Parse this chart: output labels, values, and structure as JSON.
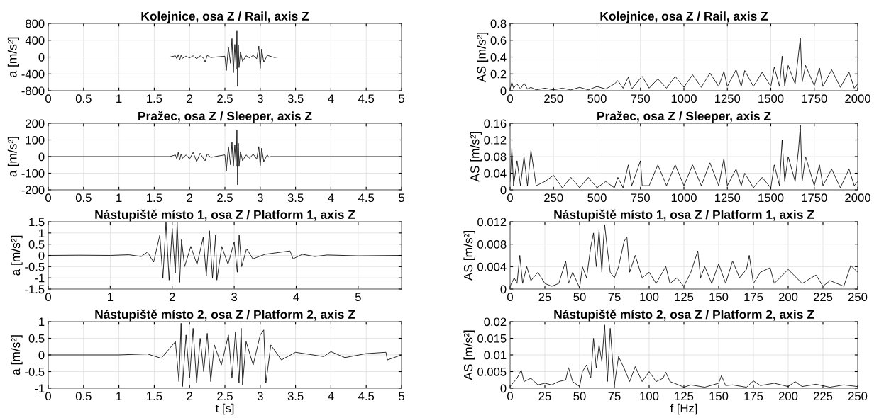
{
  "chart_data": [
    {
      "type": "line",
      "title": "Kolejnice, osa Z / Rail, axis Z",
      "ylabel": "a [m/s²]",
      "color": "#000000",
      "grid": true,
      "xlim": [
        0,
        5
      ],
      "xticks": [
        0,
        0.5,
        1,
        1.5,
        2,
        2.5,
        3,
        3.5,
        4,
        4.5,
        5
      ],
      "ylim": [
        -800,
        800
      ],
      "yticks": [
        -800,
        -400,
        0,
        400,
        800
      ],
      "x": [
        0,
        1.72,
        1.8,
        1.82,
        1.84,
        1.86,
        1.88,
        1.9,
        1.95,
        2.0,
        2.05,
        2.1,
        2.15,
        2.2,
        2.22,
        2.25,
        2.3,
        2.4,
        2.5,
        2.52,
        2.55,
        2.58,
        2.6,
        2.62,
        2.64,
        2.66,
        2.67,
        2.68,
        2.69,
        2.7,
        2.72,
        2.75,
        2.8,
        2.85,
        2.9,
        2.95,
        2.98,
        3.0,
        3.02,
        3.05,
        3.1,
        3.2,
        3.25,
        5
      ],
      "values": [
        0,
        0,
        30,
        -40,
        60,
        -70,
        40,
        -30,
        20,
        -20,
        30,
        -40,
        30,
        -30,
        -120,
        40,
        -10,
        5,
        20,
        -320,
        230,
        -150,
        440,
        -370,
        300,
        -280,
        620,
        -700,
        280,
        -250,
        120,
        -100,
        30,
        -20,
        40,
        -40,
        260,
        -270,
        190,
        -120,
        40,
        -10,
        0,
        0
      ]
    },
    {
      "type": "line",
      "title": "Pražec, osa Z / Sleeper, axis Z",
      "ylabel": "a [m/s²]",
      "color": "#000000",
      "grid": true,
      "xlim": [
        0,
        5
      ],
      "xticks": [
        0,
        0.5,
        1,
        1.5,
        2,
        2.5,
        3,
        3.5,
        4,
        4.5,
        5
      ],
      "ylim": [
        -200,
        200
      ],
      "yticks": [
        -200,
        -100,
        0,
        100,
        200
      ],
      "x": [
        0,
        1.72,
        1.8,
        1.82,
        1.84,
        1.86,
        1.88,
        1.9,
        1.95,
        2.0,
        2.05,
        2.1,
        2.15,
        2.2,
        2.22,
        2.25,
        2.3,
        2.4,
        2.5,
        2.52,
        2.55,
        2.58,
        2.6,
        2.62,
        2.64,
        2.66,
        2.67,
        2.68,
        2.69,
        2.7,
        2.72,
        2.75,
        2.8,
        2.85,
        2.9,
        2.95,
        2.98,
        3.0,
        3.02,
        3.05,
        3.1,
        3.12,
        3.15,
        5
      ],
      "values": [
        0,
        0,
        10,
        -15,
        25,
        -20,
        15,
        -10,
        10,
        -15,
        25,
        -30,
        20,
        -15,
        -25,
        15,
        -5,
        3,
        10,
        -85,
        60,
        -50,
        85,
        -60,
        70,
        -60,
        160,
        -170,
        80,
        -60,
        30,
        -25,
        10,
        -10,
        15,
        -15,
        60,
        -60,
        50,
        -30,
        10,
        -3,
        0,
        0
      ]
    },
    {
      "type": "line",
      "title": "Nástupiště místo 1, osa Z / Platform 1, axis Z",
      "ylabel": "a [m/s²]",
      "color": "#000000",
      "grid": true,
      "xlim": [
        0,
        5.7
      ],
      "xticks": [
        0,
        1,
        2,
        3,
        4,
        5
      ],
      "ylim": [
        -1.5,
        1.5
      ],
      "yticks": [
        -1.5,
        -1,
        -0.5,
        0,
        0.5,
        1,
        1.5
      ],
      "x": [
        0,
        0.5,
        1,
        1.3,
        1.5,
        1.6,
        1.7,
        1.8,
        1.85,
        1.9,
        1.95,
        2.0,
        2.05,
        2.08,
        2.12,
        2.15,
        2.2,
        2.3,
        2.4,
        2.5,
        2.55,
        2.6,
        2.65,
        2.7,
        2.72,
        2.8,
        2.9,
        3.0,
        3.05,
        3.08,
        3.12,
        3.2,
        3.3,
        3.5,
        3.9,
        3.95,
        4.1,
        4.3,
        4.5,
        5,
        5.7
      ],
      "values": [
        0,
        0.01,
        0,
        0.03,
        -0.05,
        0.15,
        -0.3,
        0.9,
        -1.0,
        1.5,
        -1.1,
        1.2,
        -0.8,
        1.5,
        -1.2,
        0.7,
        -0.5,
        0.4,
        -0.4,
        0.8,
        -0.9,
        1.1,
        -1.0,
        0.9,
        -1.1,
        0.4,
        -0.4,
        0.6,
        -0.75,
        0.9,
        -0.5,
        0.3,
        -0.15,
        0.05,
        0.2,
        -0.15,
        0.05,
        -0.05,
        0.02,
        -0.02,
        0
      ]
    },
    {
      "type": "line",
      "title": "Nástupiště místo 2, osa Z / Platform 2, axis Z",
      "ylabel": "a [m/s²]",
      "xlabel": "t [s]",
      "color": "#000000",
      "grid": true,
      "xlim": [
        0,
        5
      ],
      "xticks": [
        0,
        0.5,
        1,
        1.5,
        2,
        2.5,
        3,
        3.5,
        4,
        4.5,
        5
      ],
      "ylim": [
        -1,
        1
      ],
      "yticks": [
        -1,
        -0.5,
        0,
        0.5,
        1
      ],
      "x": [
        0,
        1,
        1.4,
        1.6,
        1.8,
        1.85,
        1.88,
        1.9,
        1.95,
        2.0,
        2.05,
        2.1,
        2.15,
        2.2,
        2.25,
        2.3,
        2.35,
        2.45,
        2.55,
        2.6,
        2.65,
        2.7,
        2.73,
        2.75,
        2.8,
        2.9,
        3.0,
        3.05,
        3.08,
        3.15,
        3.3,
        3.5,
        3.9,
        4.0,
        4.2,
        4.5,
        4.78,
        4.8,
        5
      ],
      "values": [
        0,
        0,
        0.03,
        -0.1,
        0.4,
        -0.8,
        0.95,
        -0.95,
        0.6,
        -0.7,
        0.8,
        -0.85,
        0.5,
        -0.5,
        0.65,
        -0.8,
        0.3,
        -0.3,
        0.6,
        -0.7,
        0.7,
        -0.85,
        0.8,
        -0.9,
        0.4,
        -0.3,
        0.6,
        0.75,
        -0.85,
        0.3,
        -0.15,
        0.08,
        -0.05,
        0.1,
        -0.08,
        0.04,
        0.08,
        -0.15,
        0
      ]
    },
    {
      "type": "line",
      "title": "Kolejnice, osa Z / Rail, axis Z",
      "ylabel": "AS [m/s²]",
      "color": "#000000",
      "grid": true,
      "xlim": [
        0,
        2000
      ],
      "xticks": [
        0,
        250,
        500,
        750,
        1000,
        1250,
        1500,
        1750,
        2000
      ],
      "ylim": [
        0,
        0.8
      ],
      "yticks": [
        0,
        0.2,
        0.4,
        0.6,
        0.8
      ],
      "x": [
        0,
        10,
        20,
        40,
        60,
        80,
        100,
        120,
        150,
        200,
        250,
        300,
        350,
        400,
        450,
        500,
        550,
        600,
        620,
        650,
        680,
        700,
        750,
        760,
        800,
        850,
        900,
        950,
        1000,
        1050,
        1100,
        1150,
        1200,
        1230,
        1250,
        1300,
        1330,
        1350,
        1400,
        1450,
        1500,
        1520,
        1550,
        1565,
        1580,
        1600,
        1640,
        1660,
        1670,
        1680,
        1700,
        1750,
        1780,
        1800,
        1850,
        1900,
        1950,
        1980,
        2000
      ],
      "values": [
        0.02,
        0.1,
        0.03,
        0.08,
        0.02,
        0.09,
        0.02,
        0.04,
        0.01,
        0.03,
        0.01,
        0.03,
        0.01,
        0.04,
        0.01,
        0.05,
        0.02,
        0.08,
        0.12,
        0.03,
        0.16,
        0.02,
        0.15,
        0.17,
        0.03,
        0.14,
        0.03,
        0.17,
        0.04,
        0.19,
        0.04,
        0.21,
        0.05,
        0.23,
        0.05,
        0.25,
        0.05,
        0.24,
        0.05,
        0.22,
        0.05,
        0.28,
        0.05,
        0.41,
        0.06,
        0.3,
        0.08,
        0.45,
        0.63,
        0.1,
        0.3,
        0.06,
        0.27,
        0.05,
        0.25,
        0.04,
        0.22,
        0.03,
        0.08
      ]
    },
    {
      "type": "line",
      "title": "Pražec, osa Z / Sleeper, axis Z",
      "ylabel": "AS [m/s²]",
      "color": "#000000",
      "grid": true,
      "xlim": [
        0,
        2000
      ],
      "xticks": [
        0,
        250,
        500,
        750,
        1000,
        1250,
        1500,
        1750,
        2000
      ],
      "ylim": [
        0,
        0.16
      ],
      "yticks": [
        0,
        0.04,
        0.08,
        0.12,
        0.16
      ],
      "x": [
        0,
        10,
        20,
        40,
        60,
        80,
        100,
        120,
        150,
        200,
        250,
        300,
        350,
        400,
        450,
        500,
        550,
        600,
        620,
        650,
        680,
        700,
        750,
        760,
        800,
        850,
        900,
        950,
        1000,
        1050,
        1100,
        1150,
        1200,
        1230,
        1250,
        1300,
        1330,
        1350,
        1400,
        1450,
        1500,
        1520,
        1550,
        1565,
        1580,
        1600,
        1640,
        1660,
        1670,
        1680,
        1700,
        1750,
        1780,
        1800,
        1850,
        1900,
        1950,
        1980,
        2000
      ],
      "values": [
        0.02,
        0.1,
        0.01,
        0.07,
        0.01,
        0.08,
        0.01,
        0.095,
        0.01,
        0.02,
        0.035,
        0.005,
        0.03,
        0.005,
        0.03,
        0.005,
        0.02,
        0.005,
        0.03,
        0.005,
        0.06,
        0.01,
        0.07,
        0.01,
        0.01,
        0.06,
        0.01,
        0.06,
        0.01,
        0.06,
        0.01,
        0.065,
        0.01,
        0.075,
        0.01,
        0.05,
        0.01,
        0.04,
        0.005,
        0.03,
        0.005,
        0.06,
        0.01,
        0.12,
        0.02,
        0.08,
        0.02,
        0.1,
        0.155,
        0.02,
        0.08,
        0.01,
        0.06,
        0.01,
        0.05,
        0.005,
        0.05,
        0.01,
        0.02
      ]
    },
    {
      "type": "line",
      "title": "Nástupiště místo 1, osa Z / Platform 1, axis Z",
      "ylabel": "AS [m/s²]",
      "color": "#000000",
      "grid": true,
      "xlim": [
        0,
        250
      ],
      "xticks": [
        0,
        25,
        50,
        75,
        100,
        125,
        150,
        175,
        200,
        225,
        250
      ],
      "ylim": [
        0,
        0.012
      ],
      "yticks": [
        0,
        0.004,
        0.008,
        0.012
      ],
      "x": [
        0,
        3,
        5,
        7,
        9,
        12,
        15,
        20,
        25,
        30,
        35,
        40,
        42,
        45,
        50,
        52,
        55,
        58,
        60,
        62,
        64,
        66,
        67,
        68,
        70,
        72,
        75,
        78,
        82,
        84,
        86,
        90,
        95,
        100,
        105,
        112,
        115,
        120,
        125,
        130,
        135,
        137,
        140,
        145,
        150,
        155,
        160,
        165,
        170,
        172,
        175,
        180,
        187,
        190,
        200,
        210,
        220,
        225,
        230,
        240,
        245,
        250
      ],
      "values": [
        0.0005,
        0.002,
        0.001,
        0.006,
        0.001,
        0.004,
        0.0015,
        0.003,
        0.001,
        0.0005,
        0.001,
        0.005,
        0.001,
        0.003,
        0.0002,
        0.004,
        0.002,
        0.0075,
        0.01,
        0.004,
        0.0105,
        0.003,
        0.008,
        0.0115,
        0.007,
        0.003,
        0.002,
        0.004,
        0.0085,
        0.0093,
        0.003,
        0.006,
        0.002,
        0.003,
        0.001,
        0.004,
        0.001,
        0.002,
        0.0005,
        0.003,
        0.0068,
        0.002,
        0.004,
        0.001,
        0.0045,
        0.001,
        0.005,
        0.002,
        0.0035,
        0.006,
        0.001,
        0.003,
        0.0038,
        0.001,
        0.0035,
        0.001,
        0.0025,
        0.0005,
        0.0015,
        0.0005,
        0.0042,
        0.003
      ]
    },
    {
      "type": "line",
      "title": "Nástupiště místo 2, osa Z / Platform 2, axis Z",
      "ylabel": "AS [m/s²]",
      "xlabel": "f [Hz]",
      "color": "#000000",
      "grid": true,
      "xlim": [
        0,
        250
      ],
      "xticks": [
        0,
        25,
        50,
        75,
        100,
        125,
        150,
        175,
        200,
        225,
        250
      ],
      "ylim": [
        0,
        0.02
      ],
      "yticks": [
        0,
        0.005,
        0.01,
        0.015,
        0.02
      ],
      "x": [
        0,
        5,
        8,
        10,
        15,
        20,
        25,
        30,
        35,
        40,
        42,
        45,
        50,
        52,
        55,
        58,
        60,
        62,
        64,
        66,
        68,
        70,
        72,
        75,
        78,
        82,
        86,
        90,
        95,
        100,
        105,
        110,
        112,
        115,
        120,
        125,
        130,
        140,
        150,
        152,
        155,
        160,
        170,
        175,
        180,
        190,
        200,
        205,
        210,
        220,
        230,
        240,
        250
      ],
      "values": [
        0.0005,
        0.003,
        0.0055,
        0.002,
        0.003,
        0.001,
        0.0015,
        0.001,
        0.002,
        0.0025,
        0.0062,
        0.002,
        0.0005,
        0.005,
        0.007,
        0.003,
        0.015,
        0.006,
        0.013,
        0.008,
        0.019,
        0.002,
        0.018,
        0.001,
        0.0095,
        0.006,
        0.002,
        0.0065,
        0.002,
        0.005,
        0.002,
        0.003,
        0.0048,
        0.002,
        0.0012,
        0.0003,
        0.001,
        0.0003,
        0.0015,
        0.0038,
        0.0008,
        0.001,
        0.0003,
        0.0022,
        0.0008,
        0.0015,
        0.0005,
        0.002,
        0.0005,
        0.0012,
        0.0003,
        0.001,
        0.0005
      ]
    }
  ]
}
